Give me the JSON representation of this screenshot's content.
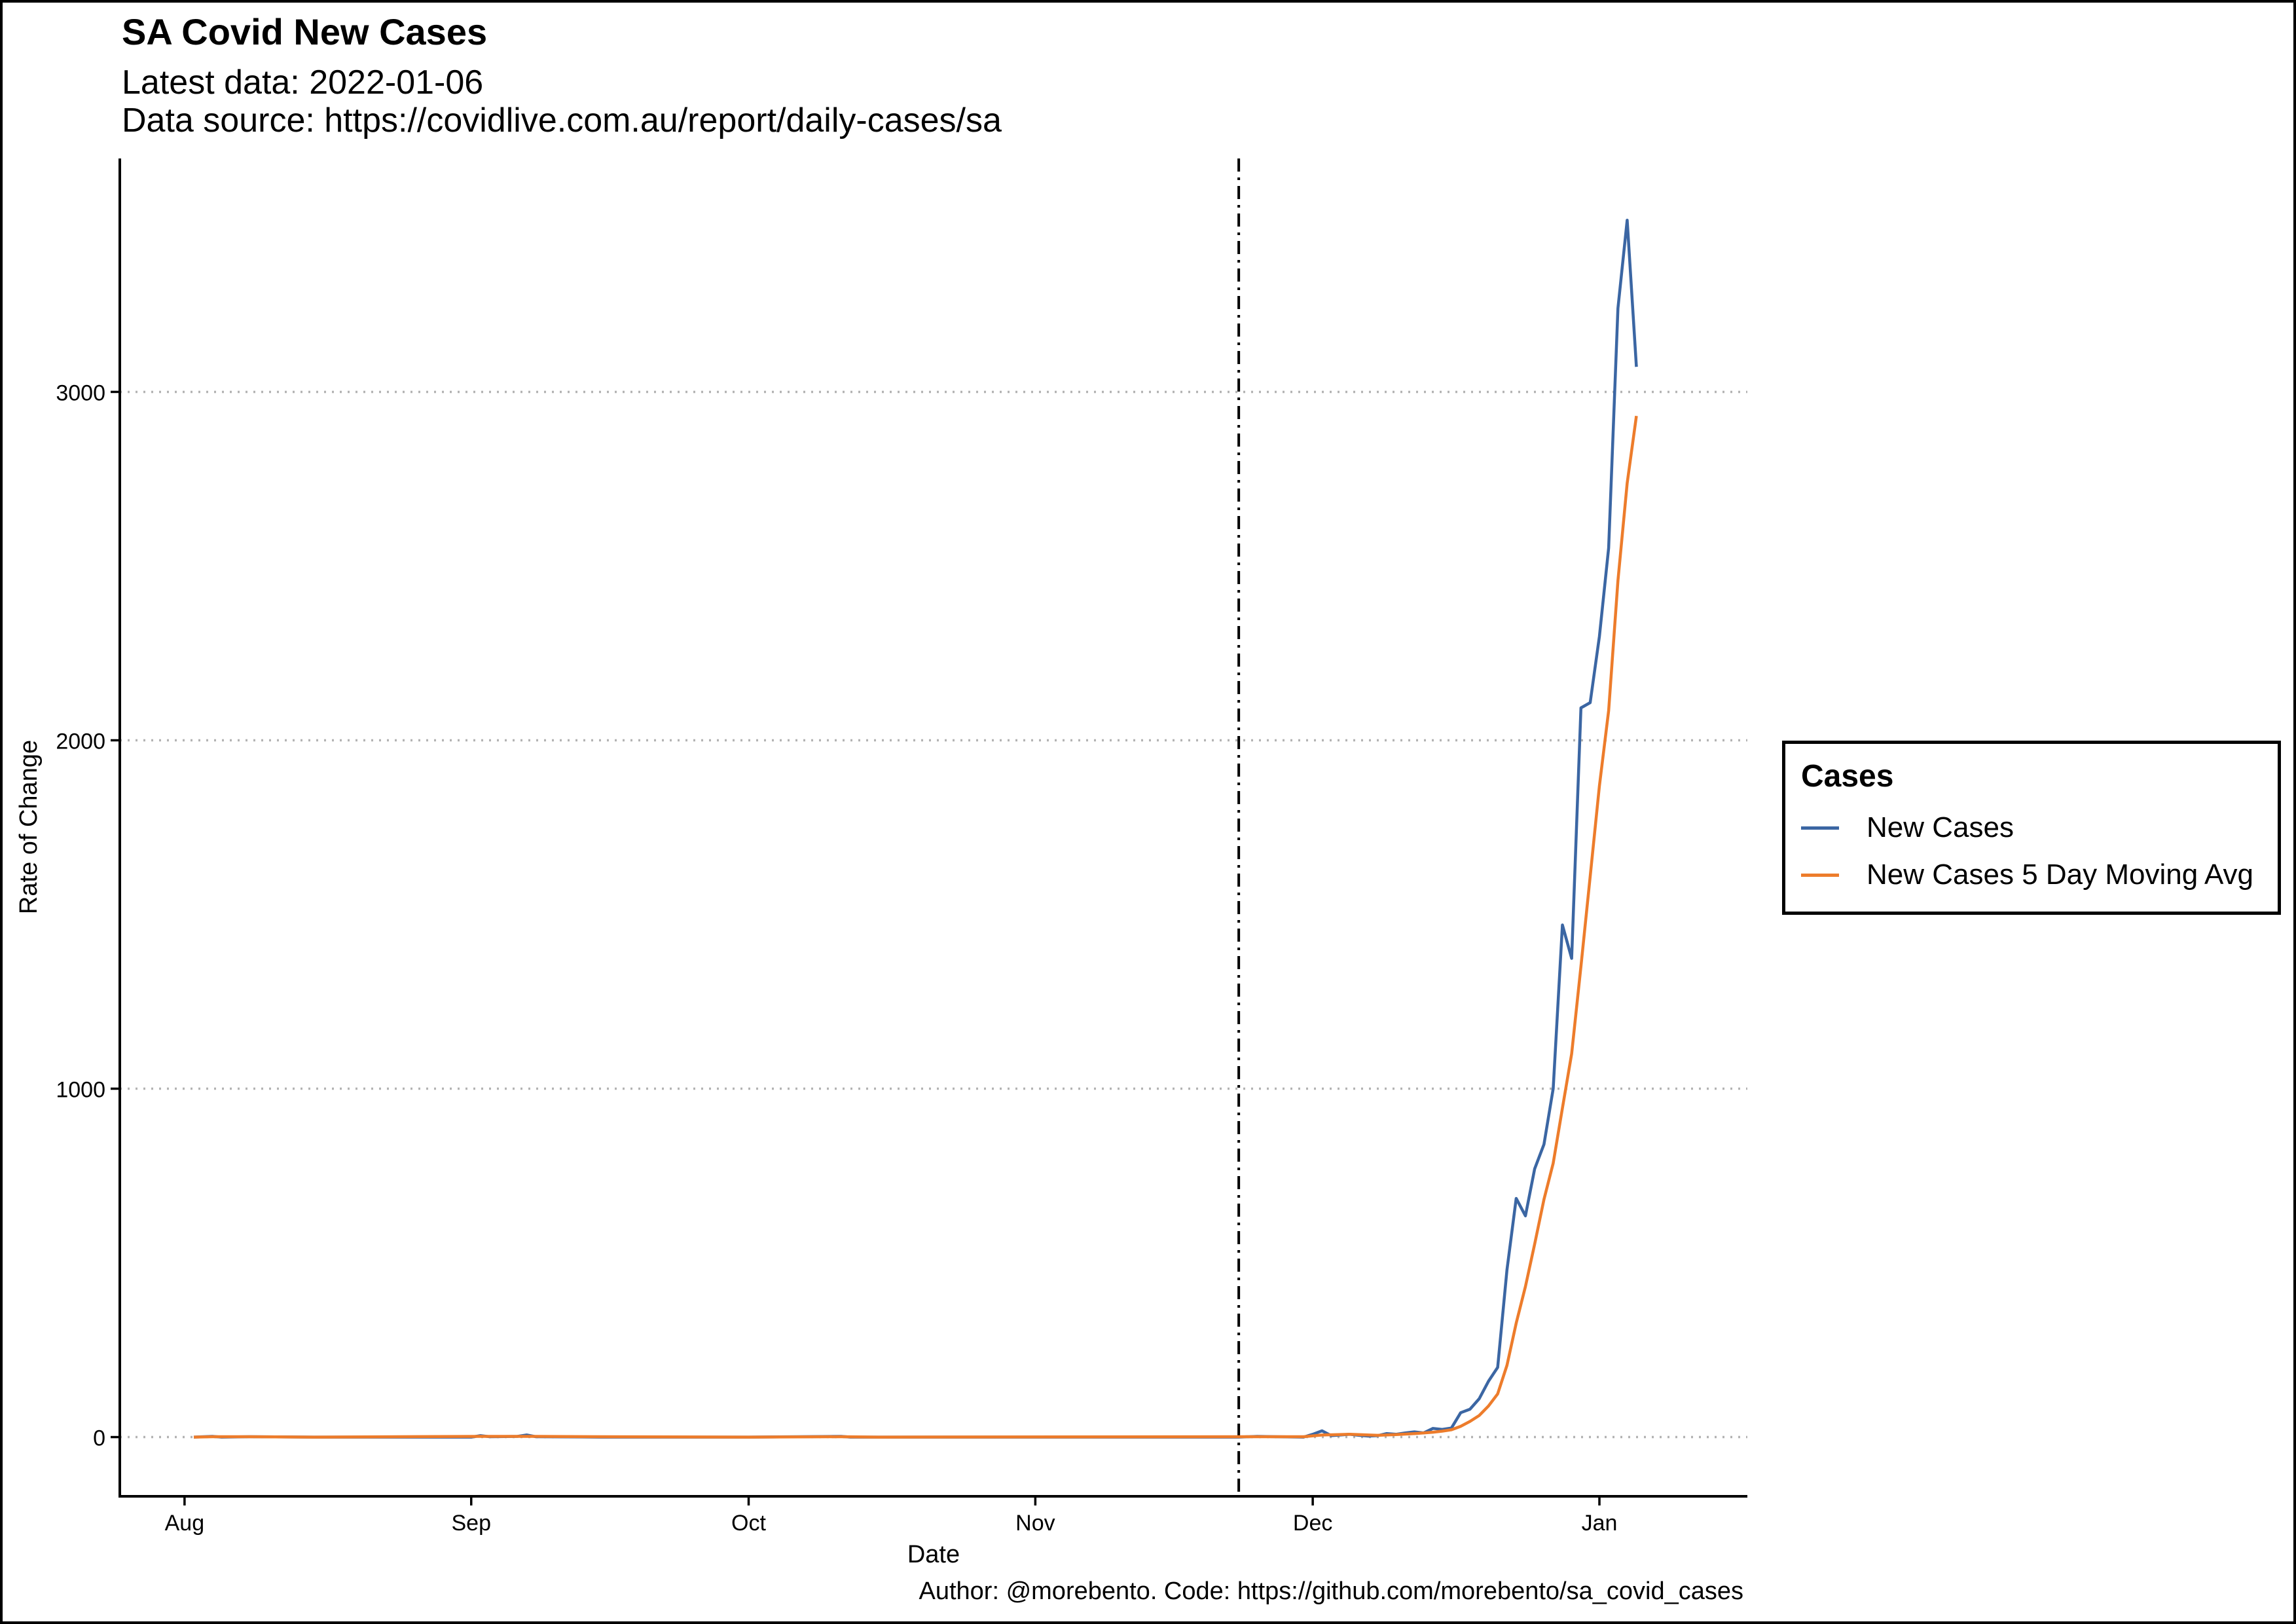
{
  "chart_data": {
    "type": "line",
    "title": "SA Covid New Cases",
    "subtitle_lines": [
      "Latest data: 2022-01-06",
      "Data source: https://covidlive.com.au/report/daily-cases/sa"
    ],
    "caption": "Author: @morebento. Code: https://github.com/morebento/sa_covid_cases",
    "xlabel": "Date",
    "ylabel": "Rate of Change",
    "x_ticks": [
      {
        "date": "2021-08-01",
        "label": "Aug"
      },
      {
        "date": "2021-09-01",
        "label": "Sep"
      },
      {
        "date": "2021-10-01",
        "label": "Oct"
      },
      {
        "date": "2021-11-01",
        "label": "Nov"
      },
      {
        "date": "2021-12-01",
        "label": "Dec"
      },
      {
        "date": "2022-01-01",
        "label": "Jan"
      }
    ],
    "xlim": [
      "2021-07-25",
      "2022-01-17"
    ],
    "y_ticks": [
      0,
      1000,
      2000,
      3000
    ],
    "ylim": [
      -170,
      3670
    ],
    "grid": "horizontal dotted",
    "reference_line": {
      "date": "2021-11-23",
      "style": "dash-dot"
    },
    "legend": {
      "title": "Cases",
      "position": "right"
    },
    "series": [
      {
        "name": "New Cases",
        "color": "#3B66A3",
        "points": [
          [
            "2021-08-02",
            0
          ],
          [
            "2021-08-04",
            2
          ],
          [
            "2021-08-05",
            0
          ],
          [
            "2021-08-08",
            1
          ],
          [
            "2021-08-15",
            0
          ],
          [
            "2021-09-01",
            0
          ],
          [
            "2021-09-02",
            4
          ],
          [
            "2021-09-03",
            1
          ],
          [
            "2021-09-06",
            2
          ],
          [
            "2021-09-07",
            6
          ],
          [
            "2021-09-08",
            1
          ],
          [
            "2021-09-15",
            0
          ],
          [
            "2021-10-01",
            0
          ],
          [
            "2021-10-11",
            2
          ],
          [
            "2021-10-12",
            0
          ],
          [
            "2021-11-23",
            0
          ],
          [
            "2021-11-25",
            2
          ],
          [
            "2021-11-27",
            1
          ],
          [
            "2021-11-30",
            0
          ],
          [
            "2021-12-01",
            8
          ],
          [
            "2021-12-02",
            18
          ],
          [
            "2021-12-03",
            4
          ],
          [
            "2021-12-04",
            6
          ],
          [
            "2021-12-05",
            8
          ],
          [
            "2021-12-06",
            5
          ],
          [
            "2021-12-07",
            3
          ],
          [
            "2021-12-08",
            4
          ],
          [
            "2021-12-09",
            10
          ],
          [
            "2021-12-10",
            8
          ],
          [
            "2021-12-11",
            12
          ],
          [
            "2021-12-12",
            15
          ],
          [
            "2021-12-13",
            12
          ],
          [
            "2021-12-14",
            25
          ],
          [
            "2021-12-15",
            22
          ],
          [
            "2021-12-16",
            26
          ],
          [
            "2021-12-17",
            70
          ],
          [
            "2021-12-18",
            80
          ],
          [
            "2021-12-19",
            110
          ],
          [
            "2021-12-20",
            160
          ],
          [
            "2021-12-21",
            200
          ],
          [
            "2021-12-22",
            480
          ],
          [
            "2021-12-23",
            685
          ],
          [
            "2021-12-24",
            635
          ],
          [
            "2021-12-25",
            770
          ],
          [
            "2021-12-26",
            840
          ],
          [
            "2021-12-27",
            1000
          ],
          [
            "2021-12-28",
            1470
          ],
          [
            "2021-12-29",
            1374
          ],
          [
            "2021-12-30",
            2093
          ],
          [
            "2021-12-31",
            2108
          ],
          [
            "2022-01-01",
            2298
          ],
          [
            "2022-01-02",
            2552
          ],
          [
            "2022-01-03",
            3240
          ],
          [
            "2022-01-04",
            3493
          ],
          [
            "2022-01-05",
            3072
          ]
        ]
      },
      {
        "name": "New Cases 5 Day Moving Avg",
        "color": "#ED7C2B",
        "points": [
          [
            "2021-08-02",
            0
          ],
          [
            "2021-08-04",
            1
          ],
          [
            "2021-08-08",
            1
          ],
          [
            "2021-08-15",
            0
          ],
          [
            "2021-09-02",
            2
          ],
          [
            "2021-09-06",
            2
          ],
          [
            "2021-09-08",
            2
          ],
          [
            "2021-09-15",
            1
          ],
          [
            "2021-10-01",
            0
          ],
          [
            "2021-10-11",
            1
          ],
          [
            "2021-10-15",
            0
          ],
          [
            "2021-11-25",
            1
          ],
          [
            "2021-11-30",
            1
          ],
          [
            "2021-12-02",
            6
          ],
          [
            "2021-12-05",
            8
          ],
          [
            "2021-12-08",
            5
          ],
          [
            "2021-12-10",
            7
          ],
          [
            "2021-12-12",
            10
          ],
          [
            "2021-12-14",
            14
          ],
          [
            "2021-12-15",
            17
          ],
          [
            "2021-12-16",
            21
          ],
          [
            "2021-12-17",
            31
          ],
          [
            "2021-12-18",
            45
          ],
          [
            "2021-12-19",
            62
          ],
          [
            "2021-12-20",
            89
          ],
          [
            "2021-12-21",
            124
          ],
          [
            "2021-12-22",
            206
          ],
          [
            "2021-12-23",
            327
          ],
          [
            "2021-12-24",
            432
          ],
          [
            "2021-12-25",
            554
          ],
          [
            "2021-12-26",
            682
          ],
          [
            "2021-12-27",
            786
          ],
          [
            "2021-12-28",
            944
          ],
          [
            "2021-12-29",
            1100
          ],
          [
            "2021-12-30",
            1351
          ],
          [
            "2021-12-31",
            1609
          ],
          [
            "2022-01-01",
            1869
          ],
          [
            "2022-01-02",
            2085
          ],
          [
            "2022-01-03",
            2458
          ],
          [
            "2022-01-04",
            2738
          ],
          [
            "2022-01-05",
            2931
          ]
        ]
      }
    ]
  }
}
